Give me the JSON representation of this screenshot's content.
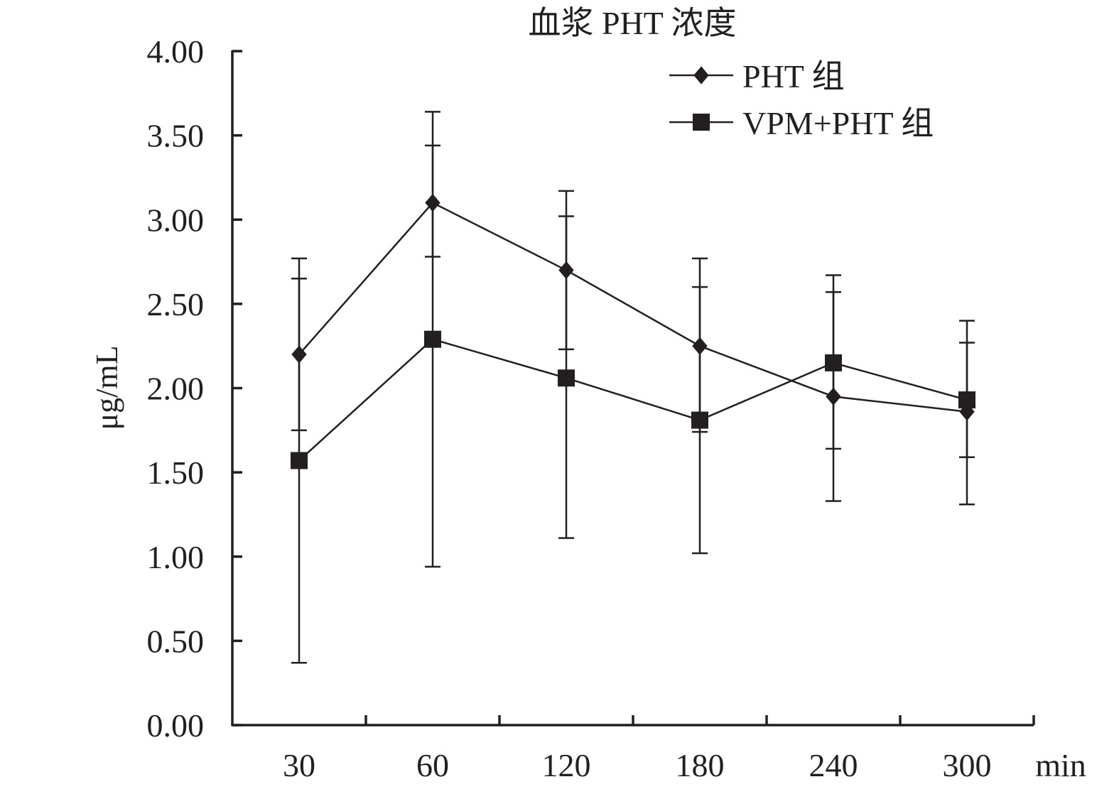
{
  "chart_data": {
    "type": "line",
    "title": "血浆 PHT 浓度",
    "xlabel": "min",
    "ylabel": "μg/mL",
    "categories": [
      "30",
      "60",
      "120",
      "180",
      "240",
      "300"
    ],
    "ylim": [
      0,
      4
    ],
    "ytick_labels": [
      "0.00",
      "0.50",
      "1.00",
      "1.50",
      "2.00",
      "2.50",
      "3.00",
      "3.50",
      "4.00"
    ],
    "ytick_values": [
      0,
      0.5,
      1,
      1.5,
      2,
      2.5,
      3,
      3.5,
      4
    ],
    "grid": false,
    "legend_position": "top-right",
    "series": [
      {
        "name": "PHT 组",
        "marker": "diamond",
        "values": [
          2.2,
          3.1,
          2.7,
          2.25,
          1.95,
          1.86
        ],
        "error_upper": [
          2.77,
          3.64,
          3.17,
          2.77,
          2.67,
          2.4
        ],
        "error_lower": [
          1.75,
          2.78,
          2.23,
          1.74,
          1.64,
          1.59
        ]
      },
      {
        "name": "VPM+PHT 组",
        "marker": "square",
        "values": [
          1.57,
          2.29,
          2.06,
          1.81,
          2.15,
          1.93
        ],
        "error_upper": [
          2.65,
          3.44,
          3.02,
          2.6,
          2.57,
          2.27
        ],
        "error_lower": [
          0.37,
          0.94,
          1.11,
          1.02,
          1.33,
          1.31
        ]
      }
    ],
    "colors": {
      "ink": "#231f20"
    }
  }
}
